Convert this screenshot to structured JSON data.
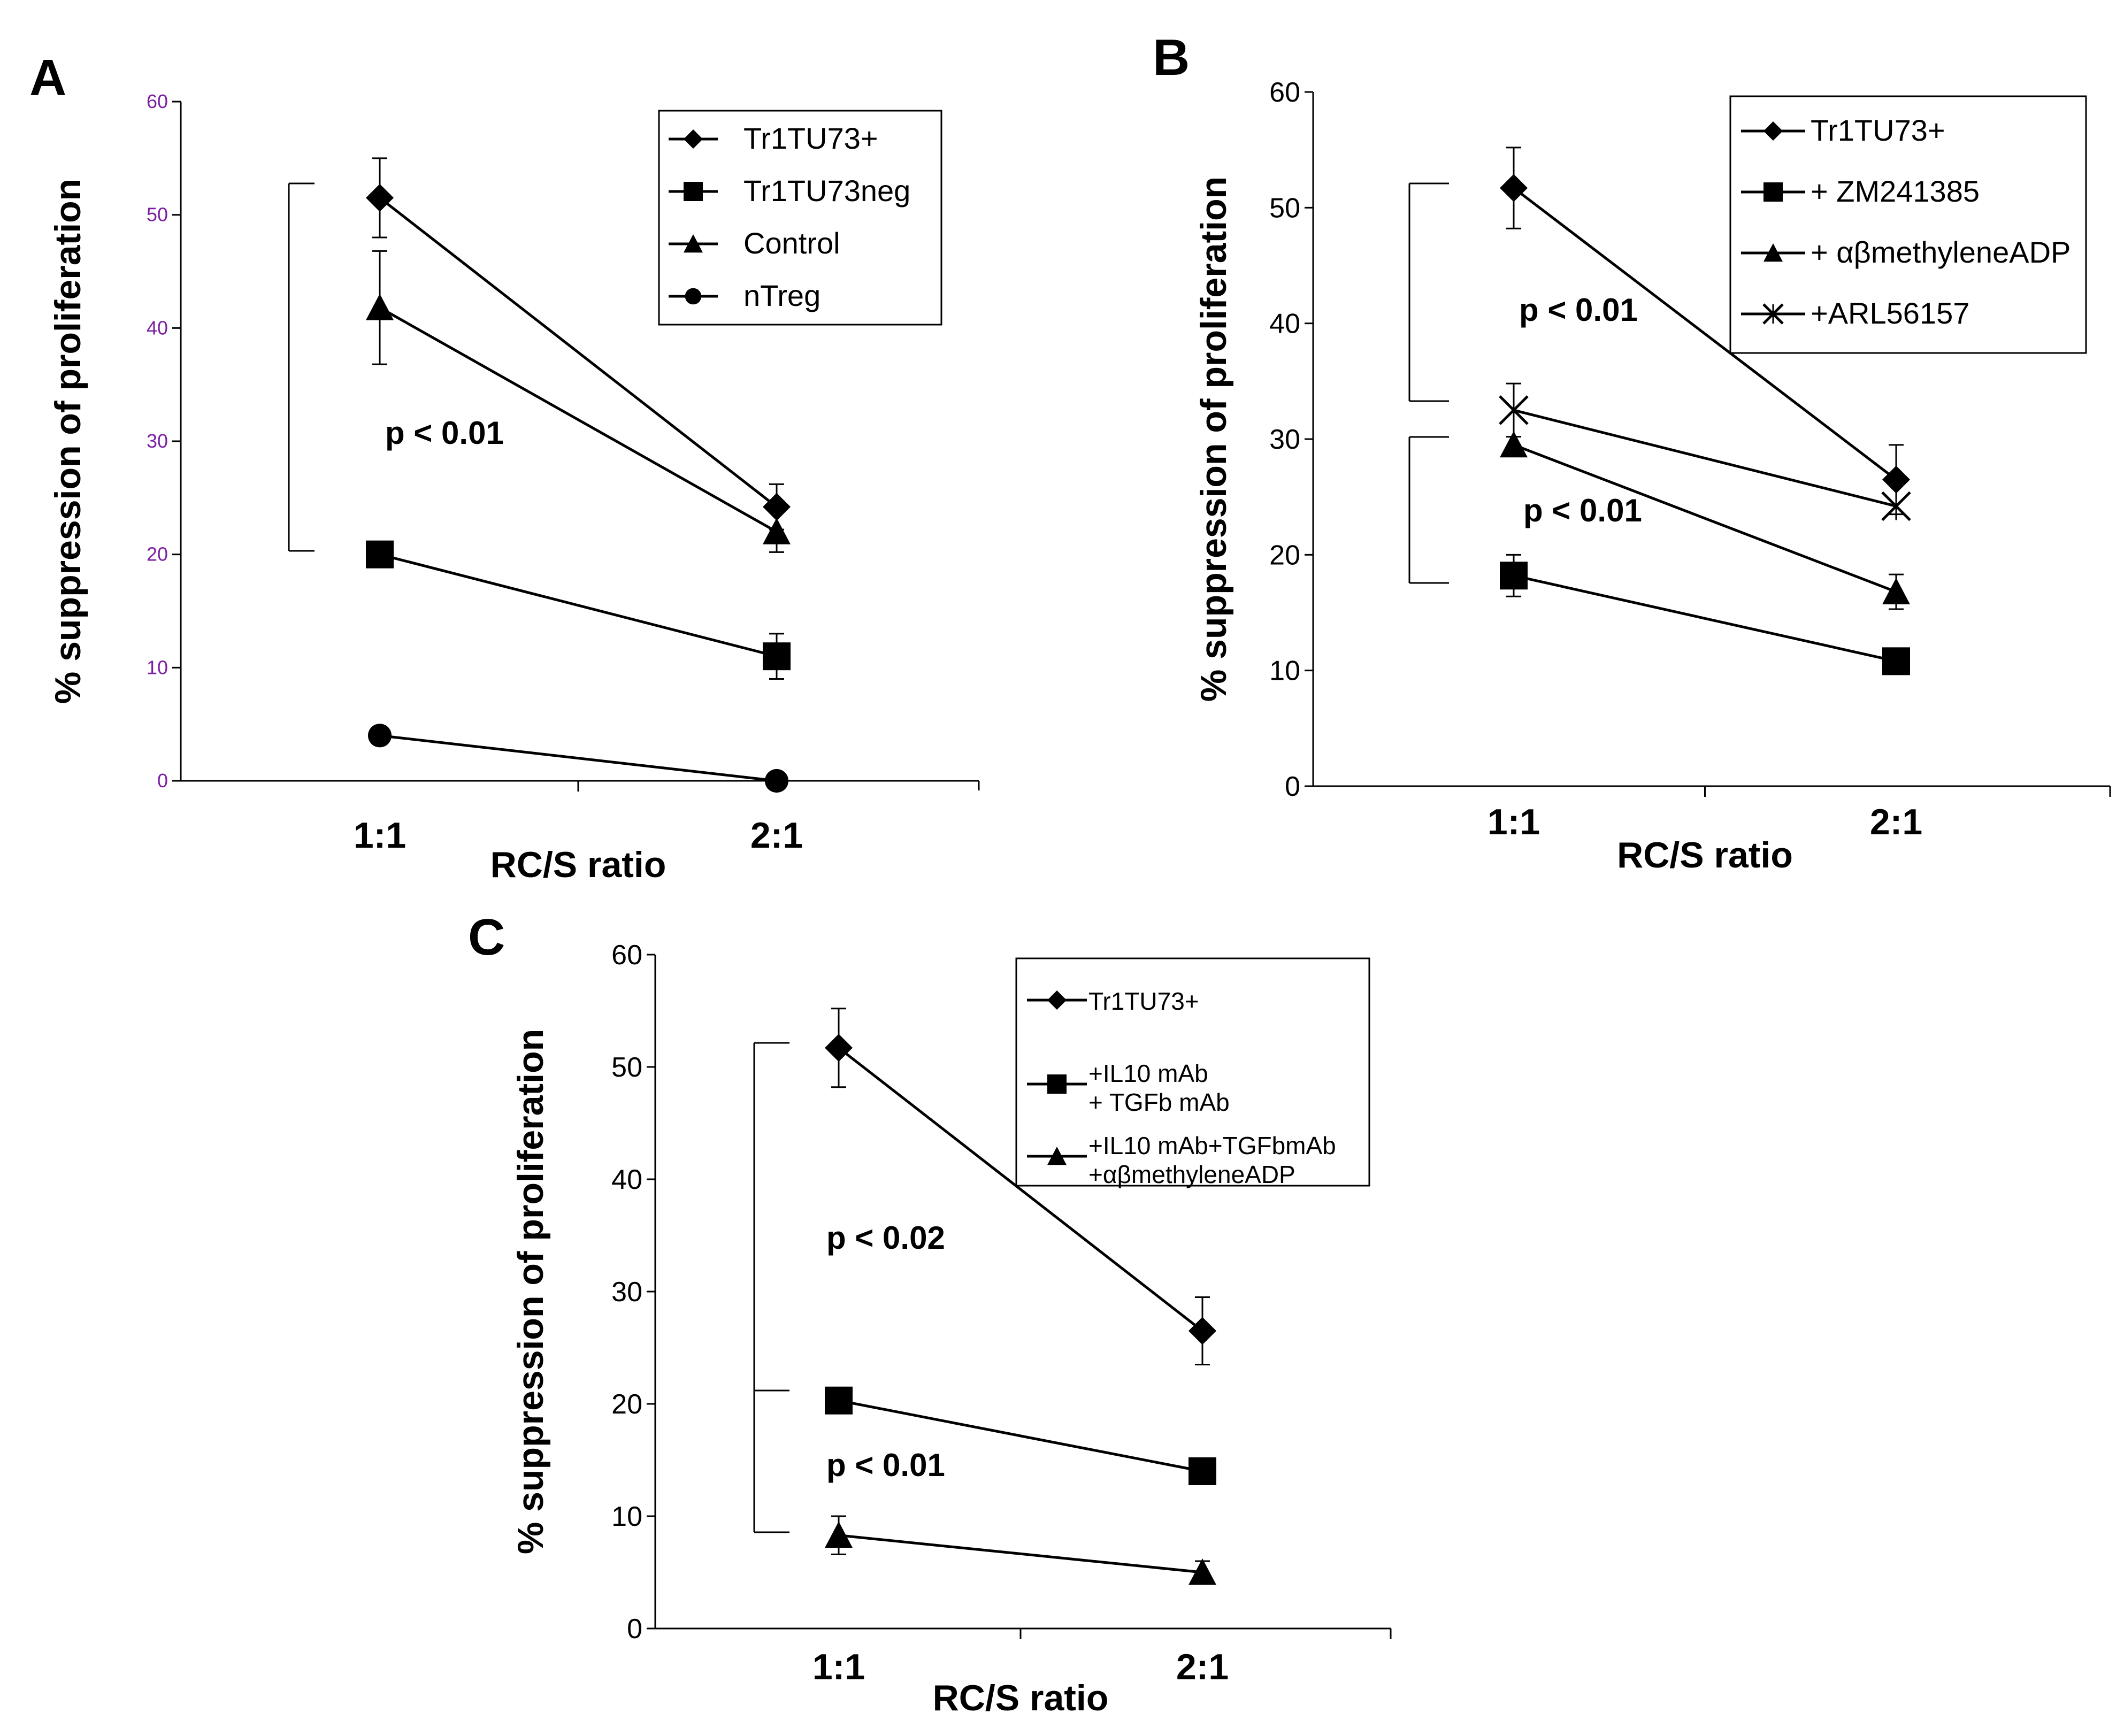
{
  "chart_data": [
    {
      "panel": "A",
      "type": "line",
      "title": "",
      "xlabel": "RC/S ratio",
      "ylabel": "% suppression of proliferation",
      "categories": [
        "1:1",
        "2:1"
      ],
      "ylim": [
        0,
        60
      ],
      "yticks": [
        0,
        10,
        20,
        30,
        40,
        50,
        60
      ],
      "tick_color": "#7b1fa2",
      "series": [
        {
          "name": "Tr1TU73+",
          "marker": "diamond",
          "values": [
            51.5,
            24.2
          ],
          "errors": [
            3.5,
            2.0
          ]
        },
        {
          "name": "Tr1TU73neg",
          "marker": "square",
          "values": [
            20,
            11
          ],
          "errors": [
            0,
            2.0
          ]
        },
        {
          "name": "Control",
          "marker": "triangle",
          "values": [
            41.8,
            22
          ],
          "errors": [
            5.0,
            1.8
          ]
        },
        {
          "name": "nTreg",
          "marker": "circle",
          "values": [
            4,
            0
          ],
          "errors": [
            0.5,
            0
          ]
        }
      ],
      "annotations": [
        {
          "text": "p < 0.01"
        }
      ]
    },
    {
      "panel": "B",
      "type": "line",
      "title": "",
      "xlabel": "RC/S ratio",
      "ylabel": "% suppression of proliferation",
      "categories": [
        "1:1",
        "2:1"
      ],
      "ylim": [
        0,
        60
      ],
      "yticks": [
        0,
        10,
        20,
        30,
        40,
        50,
        60
      ],
      "tick_color": "#000000",
      "series": [
        {
          "name": "Tr1TU73+",
          "marker": "diamond",
          "values": [
            51.7,
            26.5
          ],
          "errors": [
            3.5,
            3.0
          ]
        },
        {
          "name": "+ ZM241385",
          "marker": "square",
          "values": [
            18.2,
            10.8
          ],
          "errors": [
            1.8,
            0
          ]
        },
        {
          "name": "+ αβmethyleneADP",
          "marker": "triangle",
          "values": [
            29.5,
            16.8
          ],
          "errors": [
            0,
            1.5
          ]
        },
        {
          "name": "+ARL56157",
          "marker": "cross",
          "values": [
            32.5,
            24.2
          ],
          "errors": [
            2.3,
            0
          ]
        }
      ],
      "annotations": [
        {
          "text": "p < 0.01"
        },
        {
          "text": "p < 0.01"
        }
      ]
    },
    {
      "panel": "C",
      "type": "line",
      "title": "",
      "xlabel": "RC/S ratio",
      "ylabel": "% suppression of proliferation",
      "categories": [
        "1:1",
        "2:1"
      ],
      "ylim": [
        0,
        60
      ],
      "yticks": [
        0,
        10,
        20,
        30,
        40,
        50,
        60
      ],
      "tick_color": "#000000",
      "series": [
        {
          "name": "Tr1TU73+",
          "marker": "diamond",
          "values": [
            51.7,
            26.5
          ],
          "errors": [
            3.5,
            3.0
          ]
        },
        {
          "name": "+IL10 mAb\n+ TGFb mAb",
          "marker": "square",
          "values": [
            20.3,
            14
          ],
          "errors": [
            0,
            0
          ]
        },
        {
          "name": "+IL10 mAb+TGFbmAb\n+αβmethyleneADP",
          "marker": "triangle",
          "values": [
            8.3,
            5
          ],
          "errors": [
            1.7,
            1.0
          ]
        }
      ],
      "annotations": [
        {
          "text": "p < 0.02"
        },
        {
          "text": "p < 0.01"
        }
      ]
    }
  ]
}
